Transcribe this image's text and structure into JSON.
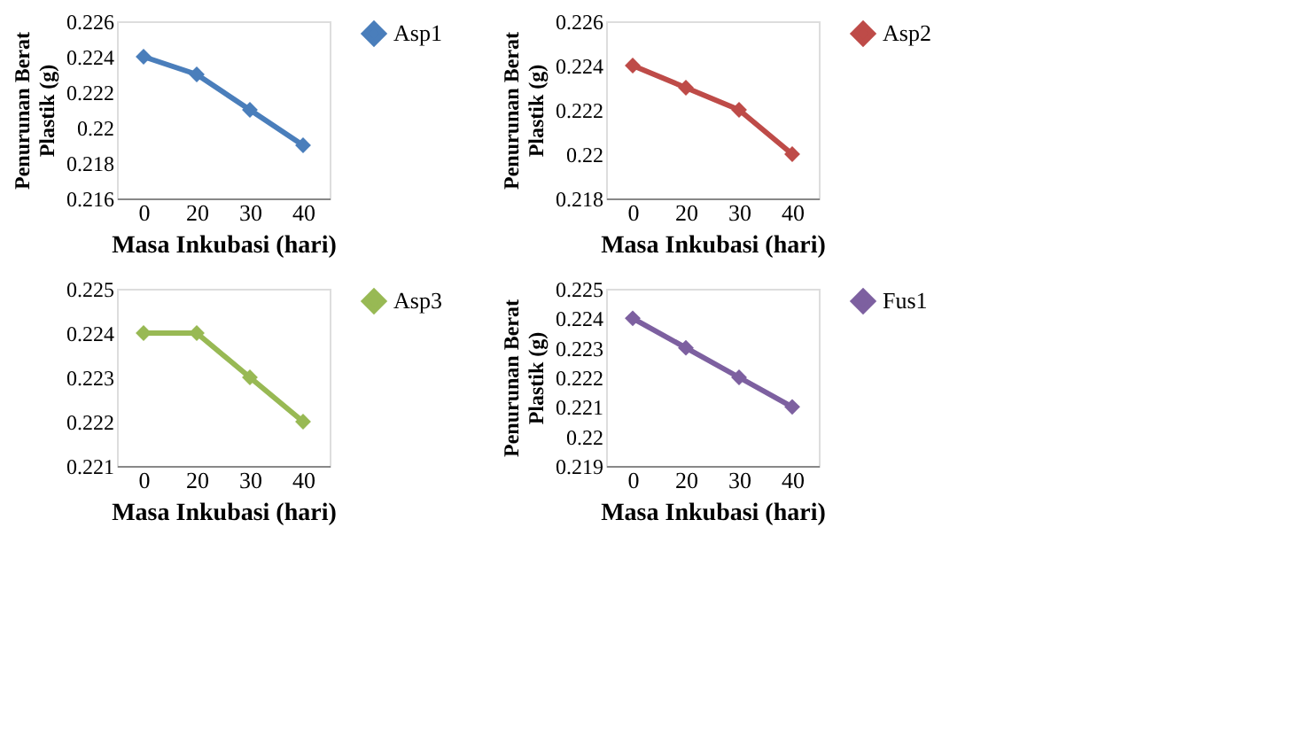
{
  "chart_data": [
    {
      "type": "line",
      "categories": [
        "0",
        "20",
        "30",
        "40"
      ],
      "xlabel": "Masa Inkubasi (hari)",
      "ylabel": "Penurunan Berat\nPlastik (g)",
      "ylim": [
        0.216,
        0.226
      ],
      "yticks": [
        0.216,
        0.218,
        0.22,
        0.222,
        0.224,
        0.226
      ],
      "marker": "diamond",
      "legend": "top right",
      "grid": false,
      "series": [
        {
          "name": "Asp1",
          "color": "#4a7ebb",
          "values": [
            0.224,
            0.223,
            0.221,
            0.219
          ]
        }
      ]
    },
    {
      "type": "line",
      "categories": [
        "0",
        "20",
        "30",
        "40"
      ],
      "xlabel": "Masa Inkubasi (hari)",
      "ylabel": "Penurunan Berat\nPlastik (g)",
      "ylim": [
        0.218,
        0.226
      ],
      "yticks": [
        0.218,
        0.22,
        0.222,
        0.224,
        0.226
      ],
      "marker": "diamond",
      "legend": "top right",
      "grid": false,
      "series": [
        {
          "name": "Asp2",
          "color": "#be4b48",
          "values": [
            0.224,
            0.223,
            0.222,
            0.22
          ]
        }
      ]
    },
    {
      "type": "line",
      "categories": [
        "0",
        "20",
        "30",
        "40"
      ],
      "xlabel": "Masa Inkubasi (hari)",
      "ylim": [
        0.221,
        0.225
      ],
      "yticks": [
        0.221,
        0.222,
        0.223,
        0.224,
        0.225
      ],
      "marker": "diamond",
      "legend": "top right",
      "grid": false,
      "series": [
        {
          "name": "Asp3",
          "color": "#98b954",
          "values": [
            0.224,
            0.224,
            0.223,
            0.222
          ]
        }
      ]
    },
    {
      "type": "line",
      "categories": [
        "0",
        "20",
        "30",
        "40"
      ],
      "xlabel": "Masa Inkubasi (hari)",
      "ylabel": "Penurunan Berat\nPlastik (g)",
      "ylim": [
        0.219,
        0.225
      ],
      "yticks": [
        0.219,
        0.22,
        0.221,
        0.222,
        0.223,
        0.224,
        0.225
      ],
      "marker": "diamond",
      "legend": "top right",
      "grid": false,
      "series": [
        {
          "name": "Fus1",
          "color": "#7d60a0",
          "values": [
            0.224,
            0.223,
            0.222,
            0.221
          ]
        }
      ]
    }
  ]
}
